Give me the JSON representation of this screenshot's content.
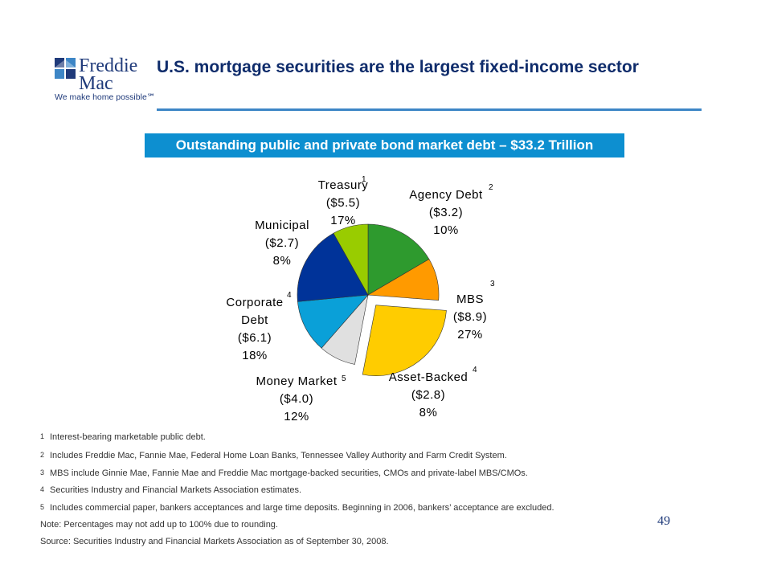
{
  "header": {
    "brand_line1": "Freddie",
    "brand_line2": "Mac",
    "tagline": "We make home possible℠",
    "title": "U.S. mortgage securities are the largest fixed-income sector",
    "colors": {
      "navy": "#1f3a7a",
      "accent": "#3d86c6",
      "banner": "#0d8fd0"
    }
  },
  "chart_data": {
    "type": "pie",
    "title": "Outstanding public and private bond market debt – $33.2 Trillion",
    "slices": [
      {
        "name": "Treasury",
        "sup": "1",
        "amount": "($5.5)",
        "pct": "17%",
        "value": 5.5,
        "color": "#2e9a2e"
      },
      {
        "name": "Agency Debt",
        "sup": "2",
        "amount": "($3.2)",
        "pct": "10%",
        "value": 3.2,
        "color": "#ff9a00"
      },
      {
        "name": "MBS",
        "sup": "3",
        "amount": "($8.9)",
        "pct": "27%",
        "value": 8.9,
        "color": "#ffcc00",
        "exploded": true
      },
      {
        "name": "Asset-Backed",
        "sup": "4",
        "amount": "($2.8)",
        "pct": "8%",
        "value": 2.8,
        "color": "#e0e0e0"
      },
      {
        "name": "Money Market",
        "sup": "5",
        "amount": "($4.0)",
        "pct": "12%",
        "value": 4.0,
        "color": "#0aa0d8"
      },
      {
        "name": "Corporate",
        "name2": "Debt",
        "sup": "4",
        "amount": "($6.1)",
        "pct": "18%",
        "value": 6.1,
        "color": "#003399"
      },
      {
        "name": "Municipal",
        "sup": "",
        "amount": "($2.7)",
        "pct": "8%",
        "value": 2.7,
        "color": "#99cc00"
      }
    ]
  },
  "footnotes": [
    {
      "num": "1",
      "text": "Interest-bearing marketable public debt."
    },
    {
      "num": "2",
      "text": "Includes Freddie Mac, Fannie Mae, Federal Home Loan Banks, Tennessee Valley Authority and Farm Credit System."
    },
    {
      "num": "3",
      "text": "MBS include Ginnie Mae, Fannie Mae and Freddie Mac mortgage-backed securities, CMOs and private-label MBS/CMOs."
    },
    {
      "num": "4",
      "text": "Securities Industry and Financial Markets Association estimates."
    },
    {
      "num": "5",
      "text": "Includes commercial paper, bankers acceptances and large time deposits. Beginning in 2006, bankers’ acceptance are excluded."
    }
  ],
  "note": "Note: Percentages may not add up to 100% due to rounding.",
  "source": "Source: Securities Industry and Financial Markets Association as of September 30, 2008.",
  "page_number": "49"
}
